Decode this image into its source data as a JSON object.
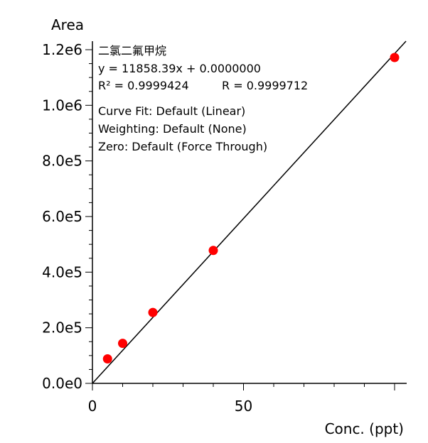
{
  "chart_data": {
    "type": "scatter",
    "ylabel": "Area",
    "xlabel": "Conc. (ppt)",
    "xlim": [
      0,
      104
    ],
    "ylim": [
      0,
      1250000
    ],
    "x_ticks": [
      0,
      50
    ],
    "x_tick_labels": [
      "0",
      "50"
    ],
    "y_ticks": [
      0,
      200000,
      400000,
      600000,
      800000,
      1000000,
      1200000
    ],
    "y_tick_labels": [
      "0.0e0",
      "2.0e5",
      "4.0e5",
      "6.0e5",
      "8.0e5",
      "1.0e6",
      "1.2e6"
    ],
    "marker_color": "#ff0000",
    "line_color": "#000000",
    "series": [
      {
        "x": [
          5,
          10,
          20,
          40,
          100
        ],
        "y": [
          88000,
          144000,
          255000,
          478000,
          1172000
        ]
      }
    ],
    "fit_line": {
      "slope": 11858.39,
      "intercept": 0
    },
    "annotations": {
      "compound": "二氯二氟甲烷",
      "equation": "y = 11858.39x + 0.0000000",
      "r2": "R² = 0.9999424",
      "r": "R = 0.9999712",
      "curve_fit": "Curve Fit: Default (Linear)",
      "weighting": "Weighting: Default (None)",
      "zero": "Zero: Default (Force Through)"
    }
  }
}
